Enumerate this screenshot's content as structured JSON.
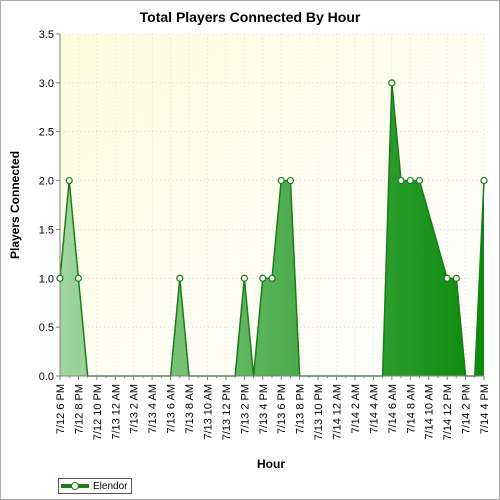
{
  "chart_data": {
    "type": "area",
    "title": "Total Players Connected By Hour",
    "xlabel": "Hour",
    "ylabel": "Players Connected",
    "ylim": [
      0,
      3.5
    ],
    "yticks": [
      "0.0",
      "0.5",
      "1.0",
      "1.5",
      "2.0",
      "2.5",
      "3.0",
      "3.5"
    ],
    "ytick_values": [
      0,
      0.5,
      1.0,
      1.5,
      2.0,
      2.5,
      3.0,
      3.5
    ],
    "xticks": [
      "7/12 6 PM",
      "7/12 8 PM",
      "7/12 10 PM",
      "7/13 12 AM",
      "7/13 2 AM",
      "7/13 4 AM",
      "7/13 6 AM",
      "7/13 8 AM",
      "7/13 10 AM",
      "7/13 12 PM",
      "7/13 2 PM",
      "7/13 4 PM",
      "7/13 6 PM",
      "7/13 8 PM",
      "7/13 10 PM",
      "7/14 12 AM",
      "7/14 2 AM",
      "7/14 4 AM",
      "7/14 6 AM",
      "7/14 8 AM",
      "7/14 10 AM",
      "7/14 12 PM",
      "7/14 2 PM",
      "7/14 4 PM"
    ],
    "grid": true,
    "legend_position": "bottom-left",
    "colors": {
      "line": "#1a7d1a",
      "fill_dark": "#0a8a0a",
      "fill_light": "#9fd69f",
      "plot_bg_top": "#fdfde0",
      "plot_bg_bottom": "#ffffff"
    },
    "series": [
      {
        "name": "Elendor",
        "x": [
          "7/12 6 PM",
          "7/12 7 PM",
          "7/12 8 PM",
          "7/12 9 PM",
          "7/12 10 PM",
          "7/12 11 PM",
          "7/13 12 AM",
          "7/13 1 AM",
          "7/13 2 AM",
          "7/13 3 AM",
          "7/13 4 AM",
          "7/13 5 AM",
          "7/13 6 AM",
          "7/13 7 AM",
          "7/13 8 AM",
          "7/13 9 AM",
          "7/13 10 AM",
          "7/13 11 AM",
          "7/13 12 PM",
          "7/13 1 PM",
          "7/13 2 PM",
          "7/13 3 PM",
          "7/13 4 PM",
          "7/13 5 PM",
          "7/13 6 PM",
          "7/13 7 PM",
          "7/13 8 PM",
          "7/13 9 PM",
          "7/13 10 PM",
          "7/13 11 PM",
          "7/14 12 AM",
          "7/14 1 AM",
          "7/14 2 AM",
          "7/14 3 AM",
          "7/14 4 AM",
          "7/14 5 AM",
          "7/14 6 AM",
          "7/14 7 AM",
          "7/14 8 AM",
          "7/14 9 AM",
          "7/14 10 AM",
          "7/14 11 AM",
          "7/14 12 PM",
          "7/14 1 PM",
          "7/14 2 PM",
          "7/14 3 PM",
          "7/14 4 PM"
        ],
        "values": [
          1,
          2,
          1,
          0,
          0,
          0,
          0,
          0,
          0,
          0,
          0,
          0,
          0,
          1,
          0,
          0,
          0,
          0,
          0,
          0,
          1,
          0,
          1,
          1,
          2,
          2,
          0,
          0,
          0,
          0,
          0,
          0,
          0,
          0,
          0,
          0,
          3,
          2,
          2,
          2,
          null,
          null,
          1,
          1,
          0,
          0,
          2
        ],
        "value_gaps": "two hourly readings at 7/14 10 AM and 11 AM are not marked; line runs straight from 2.0 to 1.0"
      }
    ]
  },
  "legend": {
    "items": [
      {
        "label": "Elendor"
      }
    ]
  }
}
